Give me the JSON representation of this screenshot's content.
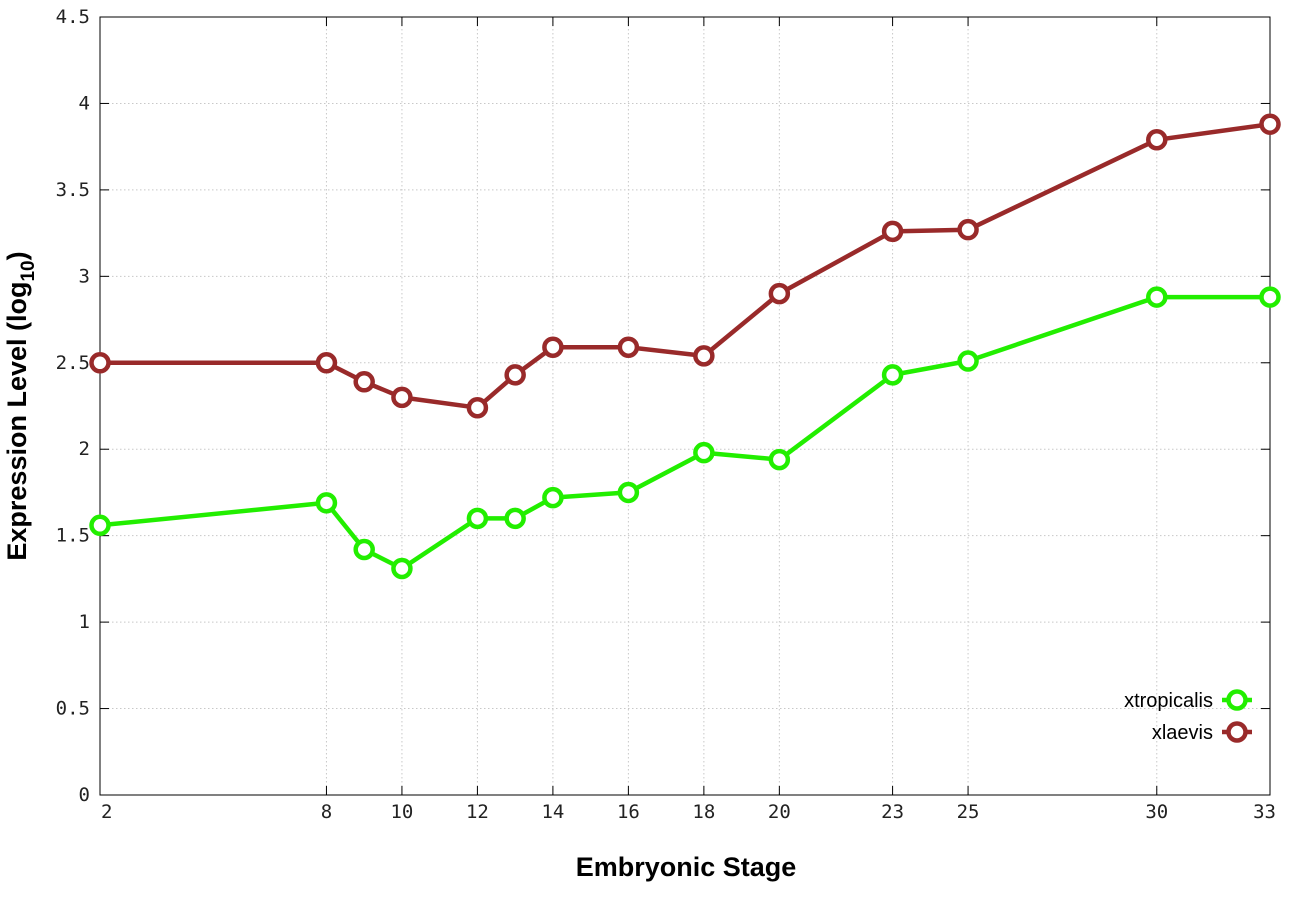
{
  "chart_data": {
    "type": "line",
    "xlabel": "Embryonic Stage",
    "ylabel": "Expression Level (log",
    "ylabel_subscript": "10",
    "ylabel_suffix": ")",
    "x_ticks": [
      2,
      8,
      10,
      12,
      14,
      16,
      18,
      20,
      23,
      25,
      30,
      33
    ],
    "x_tick_labels": [
      "2",
      "8",
      "10",
      "12",
      "14",
      "16",
      "18",
      "20",
      "23",
      "25",
      "30",
      "33"
    ],
    "y_ticks": [
      0,
      0.5,
      1,
      1.5,
      2,
      2.5,
      3,
      3.5,
      4,
      4.5
    ],
    "y_tick_labels": [
      "0",
      "0.5",
      "1",
      "1.5",
      "2",
      "2.5",
      "3",
      "3.5",
      "4",
      "4.5"
    ],
    "ylim": [
      0,
      4.5
    ],
    "grid": true,
    "legend_position": "bottom-right",
    "x": [
      2,
      8,
      9,
      10,
      12,
      13,
      14,
      16,
      18,
      20,
      23,
      25,
      30,
      33
    ],
    "series": [
      {
        "name": "xtropicalis",
        "color": "#22ee00",
        "values": [
          1.56,
          1.69,
          1.42,
          1.31,
          1.6,
          1.6,
          1.72,
          1.75,
          1.98,
          1.94,
          2.43,
          2.51,
          2.88,
          2.88
        ]
      },
      {
        "name": "xlaevis",
        "color": "#992a2a",
        "values": [
          2.5,
          2.5,
          2.39,
          2.3,
          2.24,
          2.43,
          2.59,
          2.59,
          2.54,
          2.9,
          3.26,
          3.27,
          3.79,
          3.88
        ]
      }
    ]
  }
}
